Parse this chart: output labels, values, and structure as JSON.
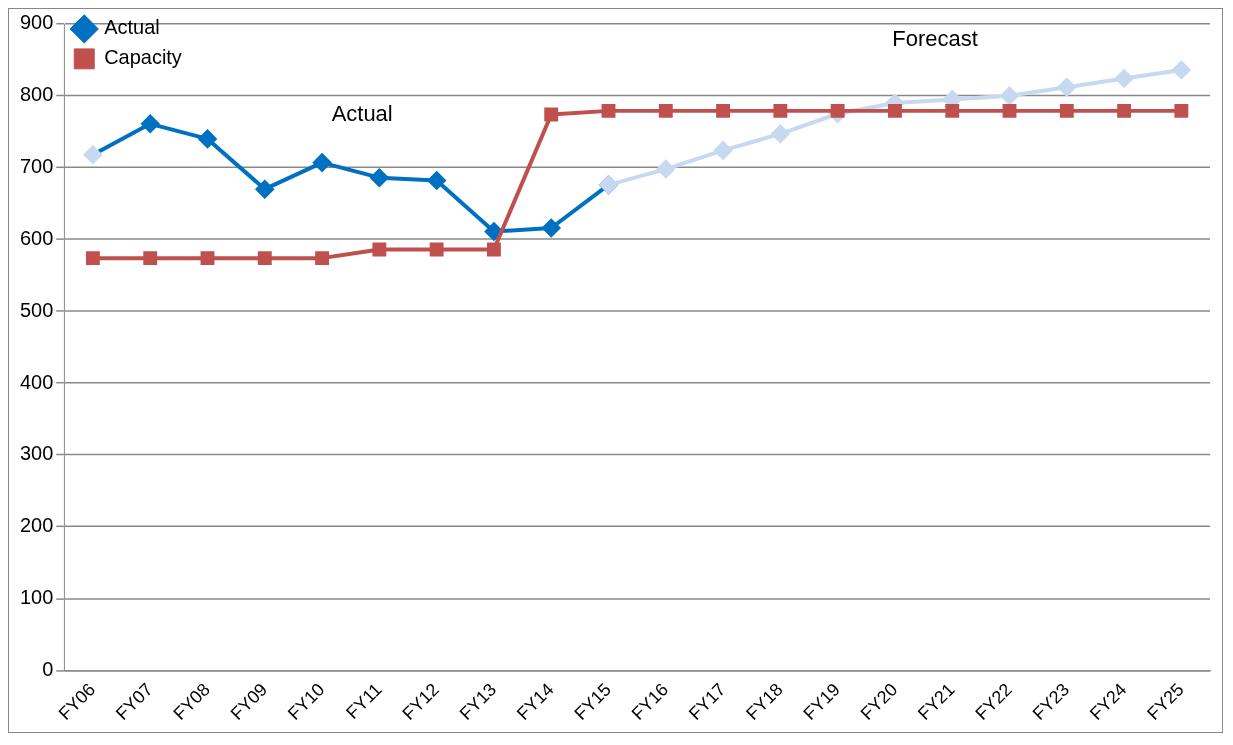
{
  "chart_data": {
    "type": "line",
    "categories": [
      "FY06",
      "FY07",
      "FY08",
      "FY09",
      "FY10",
      "FY11",
      "FY12",
      "FY13",
      "FY14",
      "FY15",
      "FY16",
      "FY17",
      "FY18",
      "FY19",
      "FY20",
      "FY21",
      "FY22",
      "FY23",
      "FY24",
      "FY25"
    ],
    "series": [
      {
        "name": "Actual",
        "color": "#0070c0",
        "colors": [
          "#c6d9f1",
          "#0070c0",
          "#0070c0",
          "#0070c0",
          "#0070c0",
          "#0070c0",
          "#0070c0",
          "#0070c0",
          "#0070c0",
          "#0070c0",
          "#0070c0",
          "#0070c0",
          "#0070c0",
          "#0070c0",
          "#0070c0",
          "#0070c0",
          "#0070c0",
          "#0070c0",
          "#0070c0",
          "#0070c0"
        ],
        "marker": "diamond",
        "values": [
          718,
          761,
          740,
          670,
          707,
          686,
          682,
          611,
          616,
          676,
          null,
          null,
          null,
          null,
          null,
          null,
          null,
          null,
          null,
          null
        ]
      },
      {
        "color": "#c6d9f1",
        "marker": "diamond",
        "values": [
          null,
          null,
          null,
          null,
          null,
          null,
          null,
          null,
          null,
          676,
          698,
          724,
          747,
          775,
          790,
          795,
          800,
          812,
          824,
          836
        ]
      },
      {
        "name": "Capacity",
        "color": "#c0504d",
        "marker": "square",
        "values": [
          574,
          574,
          574,
          574,
          574,
          586,
          586,
          586,
          774,
          779,
          779,
          779,
          779,
          779,
          779,
          779,
          779,
          779,
          779,
          779
        ]
      }
    ],
    "annotations": [
      "Actual",
      "Forecast"
    ],
    "ylim": [
      0,
      900
    ],
    "yticks": [
      0,
      100,
      200,
      300,
      400,
      500,
      600,
      700,
      800,
      900
    ],
    "grid": "y",
    "legend": "top left"
  }
}
